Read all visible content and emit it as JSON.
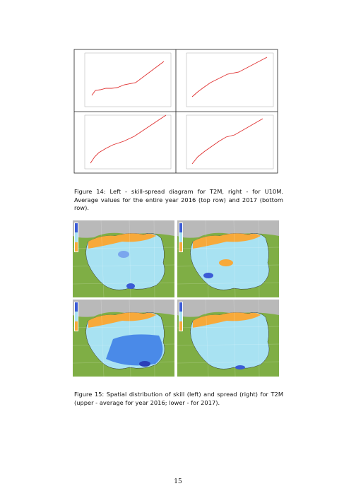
{
  "figure_14": {
    "caption": "Figure 14: Left - skill-spread diagram for T2M, right - for U10M. Average values for the entire year 2016 (top row) and 2017 (bottom row)."
  },
  "figure_15": {
    "caption": "Figure 15: Spatial distribution of skill (left) and spread (right) for T2M (upper - average for year 2016; lower - for 2017)."
  },
  "page_number": "15"
}
